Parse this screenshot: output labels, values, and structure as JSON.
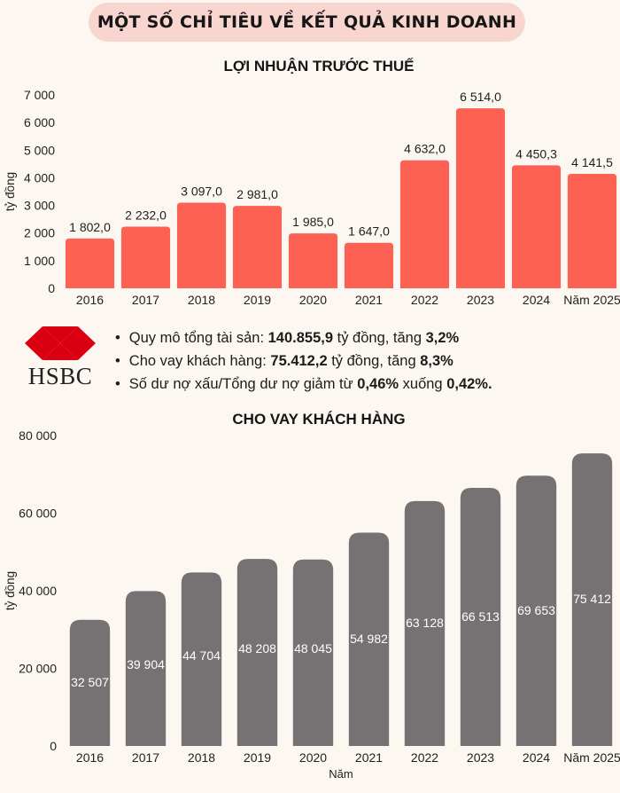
{
  "header": {
    "title": "MỘT SỐ CHỈ TIÊU VỀ KẾT QUẢ KINH DOANH"
  },
  "colors": {
    "profit_bar": "#fd6153",
    "loan_bar": "#767273",
    "banner": "#f8d6cf",
    "logo_red": "#db0011"
  },
  "logo": {
    "icon": "hsbc-hexagon-logo",
    "text": "HSBC"
  },
  "bullets": [
    {
      "pre": "Quy mô tổng tài sản: ",
      "bold1": "140.855,9",
      "mid": " tỷ đồng, tăng ",
      "bold2": "3,2%",
      "post": ""
    },
    {
      "pre": "Cho vay khách hàng: ",
      "bold1": "75.412,2",
      "mid": " tỷ đồng, tăng ",
      "bold2": "8,3%",
      "post": ""
    },
    {
      "pre": "Số dư nợ xấu/Tổng dư nợ giảm từ ",
      "bold1": "0,46%",
      "mid": " xuống ",
      "bold2": "0,42%.",
      "post": ""
    }
  ],
  "chart_data": [
    {
      "type": "bar",
      "title": "LỢI NHUẬN TRƯỚC THUẾ",
      "xlabel": "",
      "ylabel": "tỷ đồng",
      "categories": [
        "2016",
        "2017",
        "2018",
        "2019",
        "2020",
        "2021",
        "2022",
        "2023",
        "2024",
        "Năm 2025"
      ],
      "values": [
        1802.0,
        2232.0,
        3097.0,
        2981.0,
        1985.0,
        1647.0,
        4632.0,
        6514.0,
        4450.3,
        4141.5
      ],
      "value_labels": [
        "1 802,0",
        "2 232,0",
        "3 097,0",
        "2 981,0",
        "1 985,0",
        "1 647,0",
        "4 632,0",
        "6 514,0",
        "4 450,3",
        "4 141,5"
      ],
      "ylim": [
        0,
        7000
      ],
      "yticks": [
        0,
        1000,
        2000,
        3000,
        4000,
        5000,
        6000,
        7000
      ],
      "ytick_labels": [
        "0",
        "1 000",
        "2 000",
        "3 000",
        "4 000",
        "5 000",
        "6 000",
        "7 000"
      ],
      "data_label_position": "above",
      "grid": false,
      "legend": "none"
    },
    {
      "type": "bar",
      "title": "CHO VAY KHÁCH HÀNG",
      "xlabel": "Năm",
      "ylabel": "tỷ đồng",
      "categories": [
        "2016",
        "2017",
        "2018",
        "2019",
        "2020",
        "2021",
        "2022",
        "2023",
        "2024",
        "Năm 2025"
      ],
      "values": [
        32507,
        39904,
        44704,
        48208,
        48045,
        54982,
        63128,
        66513,
        69653,
        75412
      ],
      "value_labels": [
        "32 507",
        "39 904",
        "44 704",
        "48 208",
        "48 045",
        "54 982",
        "63 128",
        "66 513",
        "69 653",
        "75 412"
      ],
      "ylim": [
        0,
        80000
      ],
      "yticks": [
        0,
        20000,
        40000,
        60000,
        80000
      ],
      "ytick_labels": [
        "0",
        "20 000",
        "40 000",
        "60 000",
        "80 000"
      ],
      "data_label_position": "inside",
      "grid": false,
      "legend": "none"
    }
  ]
}
